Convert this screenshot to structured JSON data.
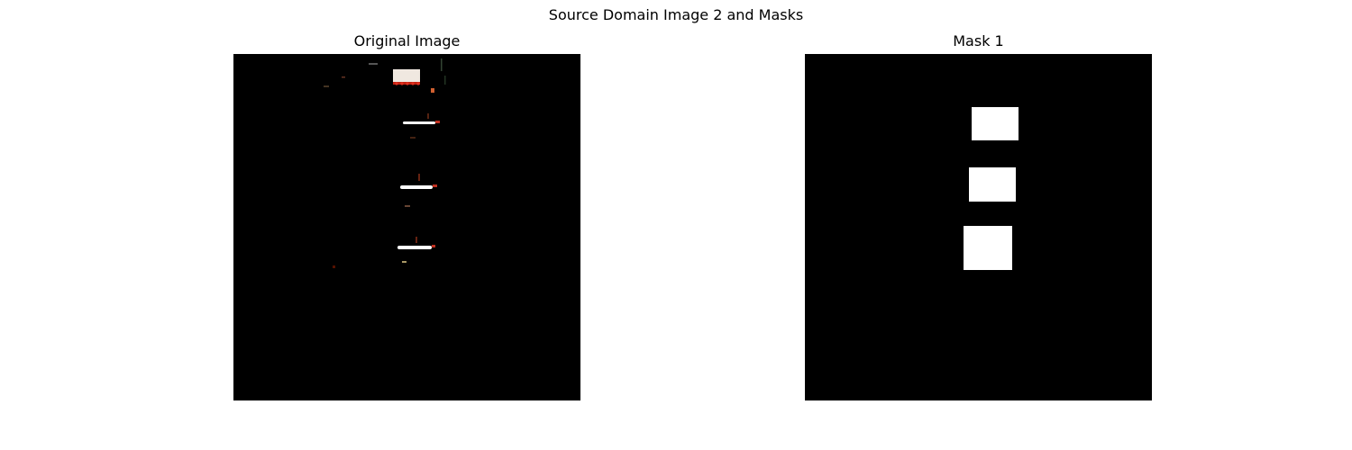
{
  "figure": {
    "title": "Source Domain Image 2 and Masks",
    "panels": [
      {
        "title": "Original Image"
      },
      {
        "title": "Mask 1"
      }
    ]
  },
  "colors": {
    "background": "#000000",
    "mask_fill": "#ffffff",
    "light_accent": "#e03020"
  }
}
